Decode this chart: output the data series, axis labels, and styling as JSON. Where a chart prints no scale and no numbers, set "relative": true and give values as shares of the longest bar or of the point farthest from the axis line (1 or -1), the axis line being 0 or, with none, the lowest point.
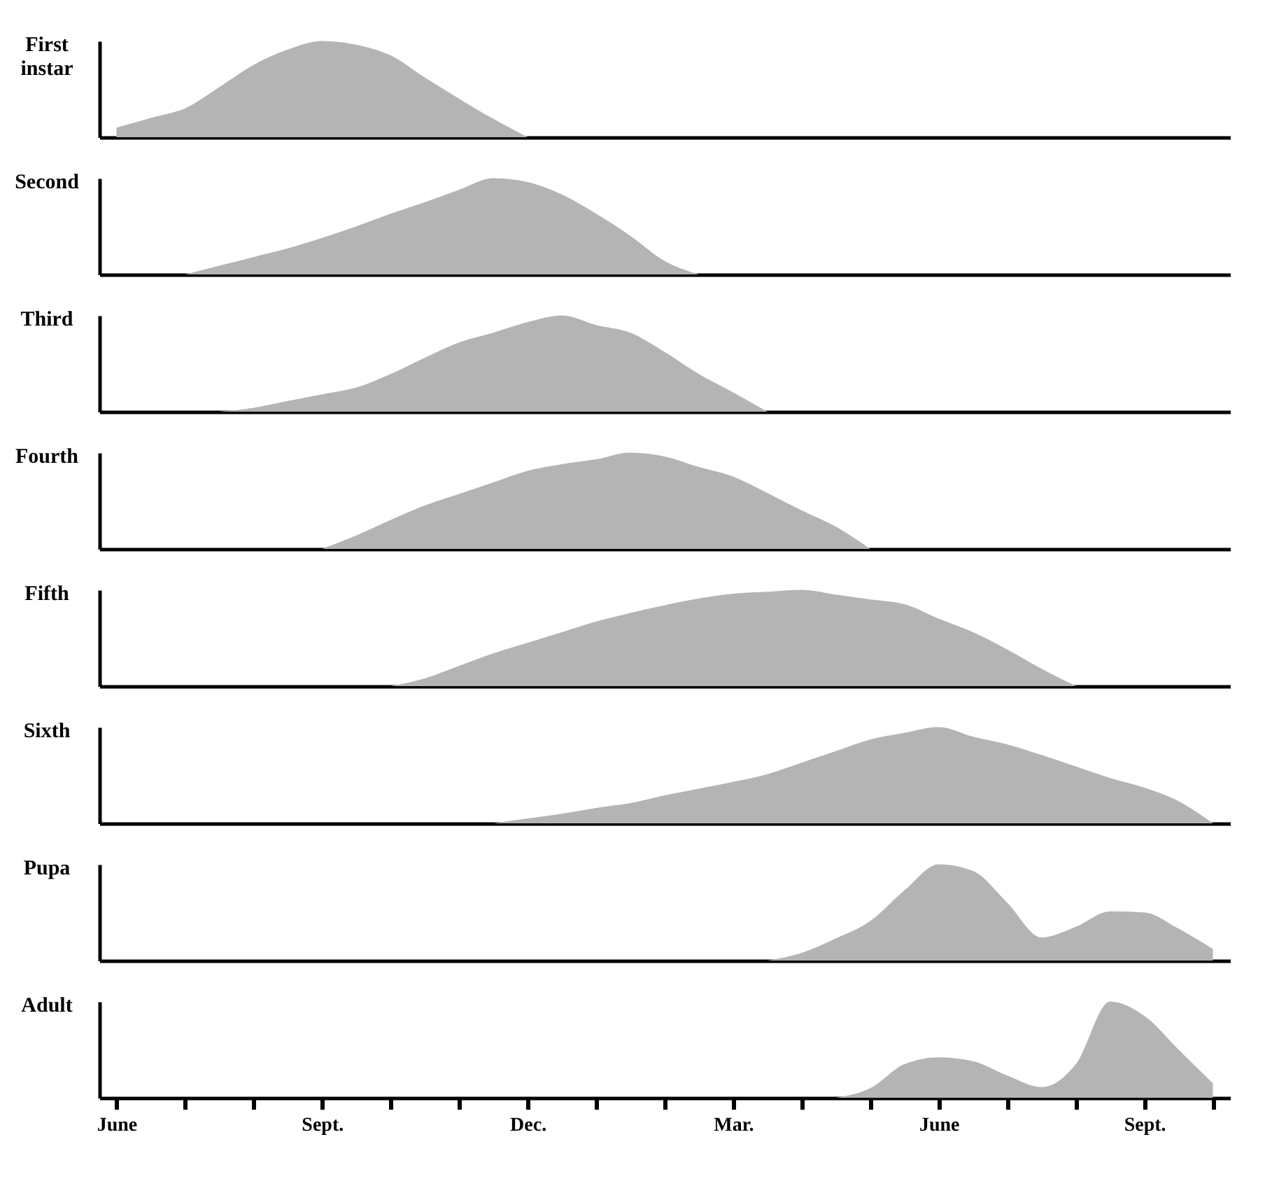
{
  "chart_data": [
    {
      "type": "area",
      "ylabel": "First instar",
      "relative": true,
      "tick_labels": false,
      "categories": [
        null,
        null,
        null,
        null,
        null,
        null,
        null,
        null,
        null,
        null,
        null,
        null,
        null,
        null,
        null,
        null,
        null,
        null,
        null,
        null,
        null,
        null,
        null,
        null,
        null,
        null,
        null,
        null,
        null,
        null,
        null,
        null,
        null
      ],
      "series": [
        {
          "color": "#b4b4b4",
          "values": [
            0.1,
            0.2,
            0.3,
            0.52,
            0.75,
            0.91,
            1,
            0.96,
            0.85,
            0.62,
            0.4,
            0.19,
            0,
            null,
            null,
            null,
            null,
            null,
            null,
            null,
            null,
            null,
            null,
            null,
            null,
            null,
            null,
            null,
            null,
            null,
            null,
            null,
            null
          ]
        }
      ]
    },
    {
      "type": "area",
      "ylabel": "Second",
      "relative": true,
      "tick_labels": false,
      "categories": [
        null,
        null,
        null,
        null,
        null,
        null,
        null,
        null,
        null,
        null,
        null,
        null,
        null,
        null,
        null,
        null,
        null,
        null,
        null,
        null,
        null,
        null,
        null,
        null,
        null,
        null,
        null,
        null,
        null,
        null,
        null,
        null,
        null
      ],
      "series": [
        {
          "color": "#b4b4b4",
          "values": [
            null,
            null,
            0,
            0.09,
            0.18,
            0.27,
            0.38,
            0.5,
            0.63,
            0.75,
            0.88,
            1,
            0.96,
            0.83,
            0.63,
            0.4,
            0.14,
            0,
            null,
            null,
            null,
            null,
            null,
            null,
            null,
            null,
            null,
            null,
            null,
            null,
            null,
            null,
            null
          ]
        }
      ]
    },
    {
      "type": "area",
      "ylabel": "Third",
      "relative": true,
      "tick_labels": false,
      "categories": [
        null,
        null,
        null,
        null,
        null,
        null,
        null,
        null,
        null,
        null,
        null,
        null,
        null,
        null,
        null,
        null,
        null,
        null,
        null,
        null,
        null,
        null,
        null,
        null,
        null,
        null,
        null,
        null,
        null,
        null,
        null,
        null,
        null
      ],
      "series": [
        {
          "color": "#b4b4b4",
          "values": [
            null,
            null,
            null,
            0,
            0.04,
            0.11,
            0.18,
            0.25,
            0.39,
            0.56,
            0.72,
            0.82,
            0.93,
            1,
            0.9,
            0.82,
            0.62,
            0.39,
            0.2,
            0,
            null,
            null,
            null,
            null,
            null,
            null,
            null,
            null,
            null,
            null,
            null,
            null,
            null
          ]
        }
      ]
    },
    {
      "type": "area",
      "ylabel": "Fourth",
      "relative": true,
      "tick_labels": false,
      "categories": [
        null,
        null,
        null,
        null,
        null,
        null,
        null,
        null,
        null,
        null,
        null,
        null,
        null,
        null,
        null,
        null,
        null,
        null,
        null,
        null,
        null,
        null,
        null,
        null,
        null,
        null,
        null,
        null,
        null,
        null,
        null,
        null,
        null
      ],
      "series": [
        {
          "color": "#b4b4b4",
          "values": [
            null,
            null,
            null,
            null,
            null,
            null,
            0,
            0.14,
            0.3,
            0.45,
            0.57,
            0.69,
            0.81,
            0.88,
            0.93,
            1,
            0.96,
            0.85,
            0.75,
            0.58,
            0.4,
            0.23,
            0,
            null,
            null,
            null,
            null,
            null,
            null,
            null,
            null,
            null,
            null
          ]
        }
      ]
    },
    {
      "type": "area",
      "ylabel": "Fifth",
      "relative": true,
      "tick_labels": false,
      "categories": [
        null,
        null,
        null,
        null,
        null,
        null,
        null,
        null,
        null,
        null,
        null,
        null,
        null,
        null,
        null,
        null,
        null,
        null,
        null,
        null,
        null,
        null,
        null,
        null,
        null,
        null,
        null,
        null,
        null,
        null,
        null,
        null,
        null
      ],
      "series": [
        {
          "color": "#b4b4b4",
          "values": [
            null,
            null,
            null,
            null,
            null,
            null,
            null,
            null,
            0,
            0.08,
            0.21,
            0.34,
            0.45,
            0.56,
            0.67,
            0.76,
            0.84,
            0.91,
            0.96,
            0.98,
            1,
            0.95,
            0.9,
            0.85,
            0.7,
            0.56,
            0.38,
            0.18,
            0,
            null,
            null,
            null,
            null
          ]
        }
      ]
    },
    {
      "type": "area",
      "ylabel": "Sixth",
      "relative": true,
      "tick_labels": false,
      "categories": [
        null,
        null,
        null,
        null,
        null,
        null,
        null,
        null,
        null,
        null,
        null,
        null,
        null,
        null,
        null,
        null,
        null,
        null,
        null,
        null,
        null,
        null,
        null,
        null,
        null,
        null,
        null,
        null,
        null,
        null,
        null,
        null,
        null
      ],
      "series": [
        {
          "color": "#b4b4b4",
          "values": [
            null,
            null,
            null,
            null,
            null,
            null,
            null,
            null,
            null,
            null,
            null,
            0,
            0.05,
            0.1,
            0.16,
            0.21,
            0.29,
            0.36,
            0.43,
            0.51,
            0.63,
            0.75,
            0.87,
            0.94,
            1,
            0.9,
            0.82,
            0.71,
            0.59,
            0.47,
            0.37,
            0.23,
            0
          ]
        }
      ]
    },
    {
      "type": "area",
      "ylabel": "Pupa",
      "relative": true,
      "tick_labels": false,
      "categories": [
        null,
        null,
        null,
        null,
        null,
        null,
        null,
        null,
        null,
        null,
        null,
        null,
        null,
        null,
        null,
        null,
        null,
        null,
        null,
        null,
        null,
        null,
        null,
        null,
        null,
        null,
        null,
        null,
        null,
        null,
        null,
        null,
        null
      ],
      "series": [
        {
          "color": "#b4b4b4",
          "values": [
            null,
            null,
            null,
            null,
            null,
            null,
            null,
            null,
            null,
            null,
            null,
            null,
            null,
            null,
            null,
            null,
            null,
            null,
            null,
            0,
            0.08,
            0.23,
            0.41,
            0.73,
            1,
            0.93,
            0.6,
            0.24,
            0.35,
            0.51,
            0.5,
            0.33,
            0.12
          ]
        }
      ]
    },
    {
      "type": "area",
      "ylabel": "Adult",
      "relative": true,
      "tick_labels": "x",
      "categories": [
        "June",
        null,
        null,
        null,
        null,
        null,
        "Sept.",
        null,
        null,
        null,
        null,
        null,
        "Dec.",
        null,
        null,
        null,
        null,
        null,
        "Mar.",
        null,
        null,
        null,
        null,
        null,
        "June",
        null,
        null,
        null,
        null,
        null,
        "Sept.",
        null,
        null
      ],
      "series": [
        {
          "color": "#b4b4b4",
          "values": [
            null,
            null,
            null,
            null,
            null,
            null,
            null,
            null,
            null,
            null,
            null,
            null,
            null,
            null,
            null,
            null,
            null,
            null,
            null,
            null,
            null,
            0,
            0.1,
            0.35,
            0.42,
            0.38,
            0.23,
            0.11,
            0.35,
            1,
            0.85,
            0.5,
            0.15
          ]
        }
      ]
    }
  ]
}
